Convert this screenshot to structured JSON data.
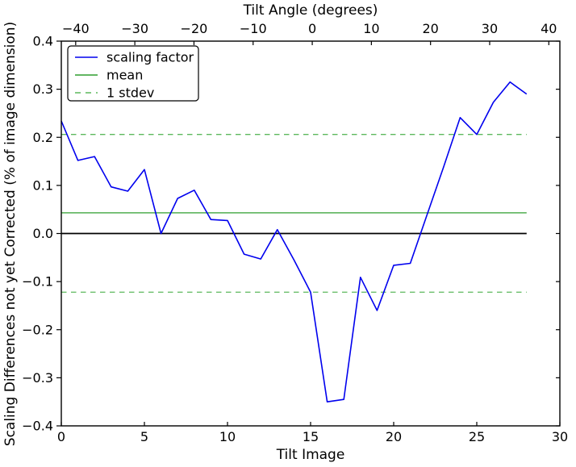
{
  "figure": {
    "title_top": "Tilt Angle (degrees)",
    "xlabel": "Tilt Image",
    "ylabel": "Scaling Differences not yet Corrected (% of image dimension)",
    "background": "#ffffff",
    "spine_color": "#000000"
  },
  "legend": {
    "position": "upper left",
    "items": [
      {
        "label": "scaling factor",
        "color": "#0000ee",
        "linestyle": "solid"
      },
      {
        "label": "mean",
        "color": "#2e9e2e",
        "linestyle": "solid"
      },
      {
        "label": "1 stdev",
        "color": "#5cb85c",
        "linestyle": "dashed"
      }
    ]
  },
  "chart_data": {
    "type": "line",
    "title": "Tilt Angle (degrees)",
    "xlabel": "Tilt Image",
    "ylabel": "Scaling Differences not yet Corrected (% of image dimension)",
    "xlim": [
      0,
      30
    ],
    "ylim": [
      -0.4,
      0.4
    ],
    "grid": false,
    "legend_position": "upper left",
    "x_ticks": [
      0,
      5,
      10,
      15,
      20,
      25,
      30
    ],
    "x_tick_labels": [
      "0",
      "5",
      "10",
      "15",
      "20",
      "25",
      "30"
    ],
    "y_ticks": [
      0.4,
      0.3,
      0.2,
      0.1,
      0.0,
      -0.1,
      -0.2,
      -0.3,
      -0.4
    ],
    "y_tick_labels": [
      "0.4",
      "0.3",
      "0.2",
      "0.1",
      "0.0",
      "−0.1",
      "−0.2",
      "−0.3",
      "−0.4"
    ],
    "top_axis": {
      "label": "Tilt Angle (degrees)",
      "ticks": [
        -40,
        -30,
        -20,
        -10,
        0,
        10,
        20,
        30,
        40
      ],
      "tick_labels": [
        "−40",
        "−30",
        "−20",
        "−10",
        "0",
        "10",
        "20",
        "30",
        "40"
      ],
      "zero_at_image": 15.1,
      "degrees_per_image": 2.81
    },
    "series": [
      {
        "name": "scaling factor",
        "kind": "line",
        "color": "#0000ee",
        "linestyle": "solid",
        "linewidth": 1.6,
        "x": [
          0,
          1,
          2,
          3,
          4,
          5,
          6,
          7,
          8,
          9,
          10,
          11,
          12,
          13,
          14,
          15,
          16,
          17,
          18,
          19,
          20,
          21,
          22,
          23,
          24,
          25,
          26,
          27,
          28
        ],
        "y": [
          0.234,
          0.152,
          0.16,
          0.097,
          0.088,
          0.133,
          0.0,
          0.073,
          0.09,
          0.029,
          0.027,
          -0.043,
          -0.053,
          0.008,
          -0.055,
          -0.122,
          -0.35,
          -0.345,
          -0.091,
          -0.16,
          -0.066,
          -0.062,
          0.038,
          0.138,
          0.241,
          0.206,
          0.273,
          0.315,
          0.29
        ]
      },
      {
        "name": "mean",
        "kind": "hline",
        "color": "#2e9e2e",
        "linestyle": "solid",
        "linewidth": 1.3,
        "y_values": [
          0.043
        ],
        "x_range": [
          0,
          28
        ]
      },
      {
        "name": "1 stdev",
        "kind": "hline",
        "color": "#5cb85c",
        "linestyle": "dashed",
        "linewidth": 1.3,
        "y_values": [
          0.206,
          -0.122
        ],
        "x_range": [
          0,
          28
        ]
      },
      {
        "name": "zero line",
        "kind": "hline",
        "color": "#000000",
        "linestyle": "solid",
        "linewidth": 1.8,
        "y_values": [
          0.0
        ],
        "x_range": [
          0,
          28
        ]
      }
    ]
  }
}
